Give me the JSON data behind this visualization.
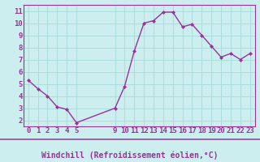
{
  "x": [
    0,
    1,
    2,
    3,
    4,
    5,
    9,
    10,
    11,
    12,
    13,
    14,
    15,
    16,
    17,
    18,
    19,
    20,
    21,
    22,
    23
  ],
  "y": [
    5.3,
    4.6,
    4.0,
    3.1,
    2.9,
    1.8,
    3.0,
    4.8,
    7.7,
    10.0,
    10.2,
    10.9,
    10.9,
    9.7,
    9.9,
    9.0,
    8.1,
    7.2,
    7.5,
    7.0,
    7.5
  ],
  "line_color": "#993399",
  "marker_color": "#993399",
  "bg_color": "#cceeee",
  "axis_bg_color": "#cceeee",
  "grid_color": "#aadddd",
  "xlabel": "Windchill (Refroidissement éolien,°C)",
  "xlabel_color": "#993399",
  "tick_color": "#993399",
  "bottom_bar_color": "#9966aa",
  "xlim": [
    -0.5,
    23.5
  ],
  "ylim": [
    1.5,
    11.5
  ],
  "yticks": [
    2,
    3,
    4,
    5,
    6,
    7,
    8,
    9,
    10,
    11
  ],
  "xticks": [
    0,
    1,
    2,
    3,
    4,
    5,
    9,
    10,
    11,
    12,
    13,
    14,
    15,
    16,
    17,
    18,
    19,
    20,
    21,
    22,
    23
  ],
  "font_size": 6.5,
  "xlabel_font_size": 7
}
